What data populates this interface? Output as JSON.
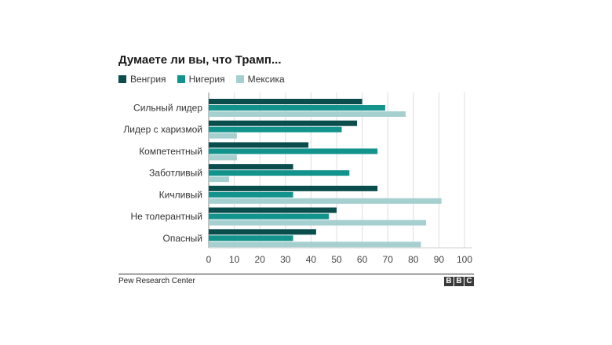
{
  "chart_data": {
    "type": "bar",
    "orientation": "horizontal",
    "title": "Думаете ли вы, что Трамп...",
    "categories": [
      "Сильный лидер",
      "Лидер с харизмой",
      "Компетентный",
      "Заботливый",
      "Кичливый",
      "Не толерантный",
      "Опасный"
    ],
    "series": [
      {
        "name": "Венгрия",
        "color": "#0a4d4d",
        "values": [
          60,
          58,
          39,
          33,
          66,
          50,
          42
        ]
      },
      {
        "name": "Нигерия",
        "color": "#12938c",
        "values": [
          69,
          52,
          66,
          55,
          33,
          47,
          33
        ]
      },
      {
        "name": "Мексика",
        "color": "#a6cfcf",
        "values": [
          77,
          11,
          11,
          8,
          91,
          85,
          83
        ]
      }
    ],
    "xlim": [
      0,
      100
    ],
    "xticks": [
      "0",
      "10",
      "20",
      "30",
      "40",
      "50",
      "60",
      "70",
      "80",
      "90",
      "100"
    ],
    "grid": true,
    "legend_position": "top-left"
  },
  "footer": {
    "source": "Pew Research Center",
    "logo_letters": [
      "B",
      "B",
      "C"
    ]
  }
}
